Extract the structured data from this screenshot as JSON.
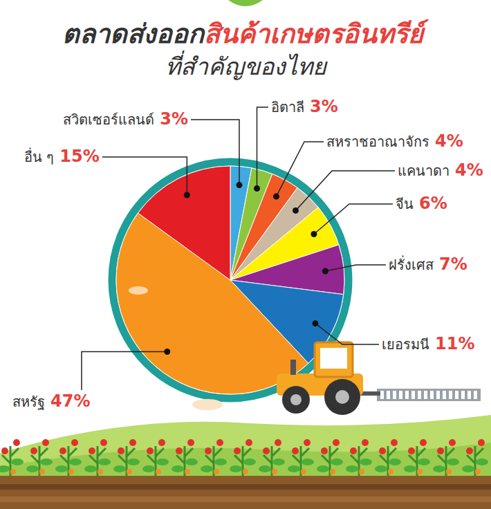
{
  "chart_data": {
    "type": "pie",
    "title": [
      "ตลาดส่งออก",
      "สินค้าเกษตรอินทรีย์"
    ],
    "subtitle": "ที่สำคัญของไทย",
    "categories": [
      "สวิตเซอร์แลนด์",
      "อิตาลี",
      "สหราชอาณาจักร",
      "แคนาดา",
      "จีน",
      "ฝรั่งเศส",
      "เยอรมนี",
      "สหรัฐ",
      "อื่น ๆ"
    ],
    "values": [
      3,
      3,
      4,
      4,
      6,
      7,
      11,
      47,
      15
    ],
    "value_labels": [
      "3%",
      "3%",
      "4%",
      "4%",
      "6%",
      "7%",
      "11%",
      "47%",
      "15%"
    ],
    "colors": [
      "#3fa9e0",
      "#8cc63f",
      "#f15a24",
      "#cbb9a2",
      "#fff200",
      "#92278f",
      "#1c75bc",
      "#f7941d",
      "#e31e24"
    ],
    "data_labels": true
  }
}
